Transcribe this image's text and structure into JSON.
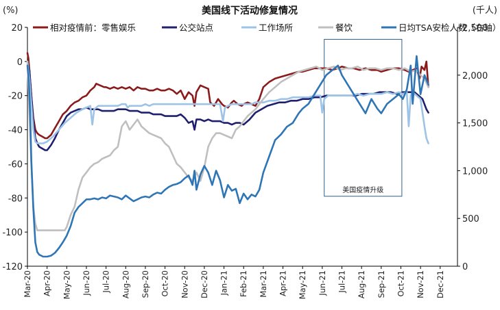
{
  "chart_data": {
    "type": "line",
    "title": "美国线下活动修复情况",
    "left_unit": "(%)",
    "right_unit": "(千人)",
    "ylim_left": [
      -120,
      20
    ],
    "yticks_left": [
      20,
      0,
      -20,
      -40,
      -60,
      -80,
      -100,
      -120
    ],
    "ylim_right": [
      0,
      2500
    ],
    "yticks_right": [
      "2,500",
      "2,000",
      "1,500",
      "1,000",
      "500",
      "0"
    ],
    "yticks_right_values": [
      2500,
      2000,
      1500,
      1000,
      500,
      0
    ],
    "x_ticks": [
      "Mar-20",
      "Apr-20",
      "May-20",
      "Jun-20",
      "Jul-20",
      "Aug-20",
      "Sep-20",
      "Oct-20",
      "Nov-20",
      "Dec-20",
      "Jan-21",
      "Feb-21",
      "Mar-21",
      "Apr-21",
      "May-21",
      "Jun-21",
      "Jul-21",
      "Aug-21",
      "Sep-21",
      "Oct-21",
      "Nov-21",
      "Dec-21"
    ],
    "annotation": {
      "label": "美国疫情升级",
      "x_start": 15.1,
      "x_end": 19.05,
      "y_top": 13,
      "y_bottom": -79
    },
    "series": [
      {
        "name": "相对疫情前：零售娱乐",
        "axis": "left",
        "color": "#8b1a1a",
        "x": [
          0,
          0.05,
          0.12,
          0.2,
          0.3,
          0.4,
          0.5,
          0.6,
          0.75,
          0.9,
          1.0,
          1.2,
          1.4,
          1.6,
          1.8,
          2.0,
          2.2,
          2.4,
          2.6,
          2.8,
          3.0,
          3.2,
          3.4,
          3.5,
          3.7,
          3.9,
          4.0,
          4.2,
          4.4,
          4.6,
          4.8,
          5.0,
          5.2,
          5.4,
          5.6,
          5.8,
          6.0,
          6.2,
          6.4,
          6.6,
          6.8,
          7.0,
          7.2,
          7.4,
          7.6,
          7.8,
          8.0,
          8.2,
          8.4,
          8.5,
          8.6,
          8.8,
          9.0,
          9.2,
          9.3,
          9.5,
          9.7,
          9.9,
          10.0,
          10.2,
          10.4,
          10.5,
          10.7,
          10.9,
          11.0,
          11.2,
          11.4,
          11.6,
          11.8,
          12.0,
          12.3,
          12.6,
          12.9,
          13.2,
          13.5,
          13.8,
          14.0,
          14.3,
          14.6,
          14.9,
          15.2,
          15.5,
          15.8,
          16.0,
          16.3,
          16.6,
          16.9,
          17.2,
          17.5,
          17.8,
          18.0,
          18.3,
          18.6,
          18.9,
          19.2,
          19.4,
          19.6,
          19.8,
          19.95,
          20.05,
          20.2,
          20.3,
          20.4
        ],
        "y": [
          5,
          2,
          -8,
          -20,
          -33,
          -40,
          -42,
          -43,
          -44,
          -45,
          -45,
          -43,
          -39,
          -35,
          -31,
          -29,
          -26,
          -24,
          -23,
          -21,
          -20,
          -17,
          -15,
          -13,
          -14,
          -15,
          -15,
          -16,
          -15,
          -16,
          -15,
          -16,
          -15,
          -17,
          -15,
          -16,
          -16,
          -17,
          -17,
          -16,
          -17,
          -17,
          -16,
          -17,
          -19,
          -17,
          -22,
          -18,
          -20,
          -26,
          -18,
          -14,
          -15,
          -16,
          -24,
          -26,
          -22,
          -25,
          -26,
          -27,
          -24,
          -23,
          -25,
          -26,
          -25,
          -24,
          -25,
          -26,
          -22,
          -15,
          -12,
          -10,
          -9,
          -8,
          -7,
          -6,
          -6,
          -5,
          -4,
          -4,
          -4,
          -5,
          -4,
          -3,
          -4,
          -4,
          -5,
          -4,
          -5,
          -5,
          -6,
          -5,
          -4,
          -4,
          -5,
          -6,
          -5,
          -4,
          -10,
          -3,
          -5,
          0,
          -15
        ]
      },
      {
        "name": "公交站点",
        "axis": "left",
        "color": "#1f1f6e",
        "x": [
          0,
          0.1,
          0.2,
          0.3,
          0.4,
          0.5,
          0.6,
          0.75,
          0.9,
          1.0,
          1.2,
          1.4,
          1.6,
          1.8,
          2.0,
          2.2,
          2.4,
          2.6,
          2.8,
          3.0,
          3.2,
          3.4,
          3.6,
          3.8,
          4.0,
          4.2,
          4.4,
          4.6,
          4.8,
          5.0,
          5.2,
          5.4,
          5.6,
          5.8,
          6.0,
          6.2,
          6.4,
          6.6,
          6.8,
          7.0,
          7.2,
          7.4,
          7.6,
          7.8,
          8.0,
          8.2,
          8.4,
          8.5,
          8.6,
          8.8,
          9.0,
          9.2,
          9.4,
          9.6,
          9.8,
          10.0,
          10.2,
          10.4,
          10.6,
          10.8,
          11.0,
          11.3,
          11.6,
          11.9,
          12.2,
          12.5,
          12.8,
          13.1,
          13.4,
          13.7,
          14.0,
          14.3,
          14.6,
          14.9,
          15.2,
          15.5,
          15.8,
          16.1,
          16.4,
          16.7,
          17.0,
          17.3,
          17.6,
          17.9,
          18.2,
          18.5,
          18.8,
          19.1,
          19.4,
          19.7,
          19.9,
          20.1,
          20.3,
          20.4
        ],
        "y": [
          0,
          -5,
          -20,
          -35,
          -45,
          -48,
          -50,
          -51,
          -52,
          -52,
          -49,
          -45,
          -40,
          -36,
          -32,
          -30,
          -29,
          -28,
          -28,
          -27,
          -28,
          -28,
          -28,
          -29,
          -29,
          -29,
          -29,
          -28,
          -28,
          -28,
          -29,
          -29,
          -29,
          -30,
          -30,
          -30,
          -31,
          -31,
          -31,
          -32,
          -32,
          -32,
          -32,
          -31,
          -33,
          -36,
          -35,
          -40,
          -34,
          -34,
          -35,
          -34,
          -35,
          -35,
          -35,
          -36,
          -36,
          -37,
          -36,
          -36,
          -37,
          -34,
          -30,
          -28,
          -26,
          -25,
          -24,
          -24,
          -23,
          -23,
          -22,
          -22,
          -21,
          -21,
          -20,
          -20,
          -20,
          -20,
          -20,
          -20,
          -19,
          -19,
          -19,
          -18,
          -18,
          -18,
          -19,
          -18,
          -18,
          -18,
          -20,
          -22,
          -28,
          -30
        ]
      },
      {
        "name": "工作场所",
        "axis": "left",
        "color": "#9dc3e6",
        "x": [
          0,
          0.1,
          0.2,
          0.3,
          0.4,
          0.5,
          0.6,
          0.8,
          1.0,
          1.3,
          1.6,
          1.9,
          2.2,
          2.5,
          2.8,
          3.0,
          3.2,
          3.3,
          3.4,
          3.6,
          3.8,
          4.0,
          4.2,
          4.4,
          4.6,
          4.8,
          5.0,
          5.1,
          5.2,
          5.4,
          5.6,
          5.8,
          6.0,
          6.2,
          6.4,
          6.6,
          6.8,
          7.0,
          7.2,
          7.4,
          7.6,
          7.8,
          8.0,
          8.3,
          8.5,
          8.7,
          9.0,
          9.2,
          9.4,
          9.6,
          9.8,
          9.95,
          10.05,
          10.2,
          10.4,
          10.6,
          10.8,
          11.0,
          11.2,
          11.4,
          11.6,
          11.8,
          12.0,
          12.3,
          12.6,
          12.9,
          13.2,
          13.5,
          13.8,
          14.0,
          14.3,
          14.6,
          14.9,
          15.0,
          15.1,
          15.3,
          15.6,
          15.9,
          16.2,
          16.5,
          16.8,
          17.1,
          17.4,
          17.7,
          18.0,
          18.3,
          18.6,
          18.9,
          19.1,
          19.3,
          19.4,
          19.5,
          19.6,
          19.8,
          20.0,
          20.1,
          20.2,
          20.3,
          20.4
        ],
        "y": [
          0,
          -10,
          -25,
          -40,
          -47,
          -48,
          -48,
          -48,
          -47,
          -44,
          -40,
          -36,
          -33,
          -30,
          -28,
          -27,
          -26,
          -37,
          -28,
          -26,
          -26,
          -26,
          -26,
          -26,
          -26,
          -25,
          -25,
          -27,
          -26,
          -26,
          -26,
          -26,
          -25,
          -26,
          -25,
          -25,
          -25,
          -25,
          -25,
          -25,
          -25,
          -25,
          -25,
          -25,
          -25,
          -25,
          -25,
          -25,
          -25,
          -25,
          -25,
          -35,
          -27,
          -26,
          -25,
          -25,
          -25,
          -25,
          -25,
          -25,
          -24,
          -24,
          -24,
          -23,
          -23,
          -22,
          -22,
          -21,
          -21,
          -21,
          -21,
          -20,
          -20,
          -30,
          -22,
          -20,
          -20,
          -20,
          -20,
          -20,
          -19,
          -20,
          -19,
          -19,
          -19,
          -18,
          -19,
          -18,
          -19,
          -18,
          -38,
          -20,
          -18,
          -20,
          -22,
          -30,
          -38,
          -45,
          -48
        ]
      },
      {
        "name": "餐饮",
        "axis": "left",
        "color": "#bfbfbf",
        "x": [
          0,
          0.1,
          0.2,
          0.3,
          0.4,
          0.5,
          0.7,
          0.9,
          1.0,
          1.3,
          1.6,
          1.9,
          2.0,
          2.2,
          2.4,
          2.6,
          2.8,
          3.0,
          3.2,
          3.4,
          3.6,
          3.8,
          4.0,
          4.2,
          4.4,
          4.6,
          4.8,
          5.0,
          5.2,
          5.4,
          5.6,
          5.8,
          6.0,
          6.2,
          6.4,
          6.6,
          6.8,
          7.0,
          7.2,
          7.4,
          7.6,
          7.8,
          8.0,
          8.2,
          8.4,
          8.6,
          8.8,
          9.0,
          9.2,
          9.4,
          9.6,
          9.8,
          10.0,
          10.2,
          10.4,
          10.6,
          10.8,
          11.0,
          11.2,
          11.4,
          11.6,
          11.8,
          12.0,
          12.3,
          12.6,
          12.9,
          13.2,
          13.5,
          13.8,
          14.1,
          14.4,
          14.7,
          15.0,
          15.3,
          15.6,
          15.9,
          16.2,
          16.5,
          16.8,
          17.1,
          17.4,
          17.7,
          18.0,
          18.3,
          18.6,
          18.9,
          19.2,
          19.5,
          19.8,
          20.0,
          20.2,
          20.4
        ],
        "y": [
          0,
          -30,
          -60,
          -85,
          -95,
          -99,
          -99,
          -99,
          -99,
          -99,
          -99,
          -99,
          -97,
          -90,
          -85,
          -75,
          -68,
          -65,
          -62,
          -60,
          -59,
          -57,
          -56,
          -55,
          -52,
          -50,
          -38,
          -35,
          -40,
          -37,
          -34,
          -38,
          -40,
          -42,
          -43,
          -44,
          -45,
          -48,
          -50,
          -55,
          -60,
          -62,
          -65,
          -68,
          -70,
          -65,
          -70,
          -62,
          -50,
          -45,
          -42,
          -42,
          -43,
          -44,
          -45,
          -40,
          -38,
          -35,
          -32,
          -30,
          -28,
          -25,
          -22,
          -18,
          -15,
          -12,
          -10,
          -8,
          -6,
          -5,
          -4,
          -3,
          -5,
          -4,
          -3,
          -5,
          -4,
          -4,
          -3,
          -5,
          -4,
          -4,
          -5,
          -4,
          -4,
          -5,
          -4,
          -6,
          -5,
          -8,
          -10,
          -15
        ]
      },
      {
        "name": "日均TSA安检人数（右轴）",
        "axis": "right",
        "color": "#2e75b6",
        "x": [
          0,
          0.05,
          0.1,
          0.15,
          0.2,
          0.3,
          0.4,
          0.5,
          0.6,
          0.8,
          1.0,
          1.2,
          1.4,
          1.6,
          1.8,
          2.0,
          2.2,
          2.4,
          2.6,
          2.8,
          3.0,
          3.2,
          3.4,
          3.6,
          3.8,
          4.0,
          4.2,
          4.4,
          4.6,
          4.8,
          5.0,
          5.2,
          5.4,
          5.6,
          5.8,
          6.0,
          6.2,
          6.4,
          6.6,
          6.8,
          7.0,
          7.2,
          7.4,
          7.6,
          7.8,
          8.0,
          8.2,
          8.4,
          8.5,
          8.6,
          8.8,
          9.0,
          9.2,
          9.4,
          9.6,
          9.8,
          10.0,
          10.2,
          10.4,
          10.6,
          10.8,
          11.0,
          11.2,
          11.4,
          11.6,
          11.8,
          12.0,
          12.3,
          12.6,
          12.9,
          13.2,
          13.5,
          13.8,
          14.0,
          14.3,
          14.6,
          14.9,
          15.2,
          15.5,
          15.8,
          16.0,
          16.3,
          16.6,
          16.9,
          17.2,
          17.5,
          17.8,
          18.0,
          18.3,
          18.6,
          18.9,
          19.1,
          19.3,
          19.5,
          19.6,
          19.8,
          20.0,
          20.2,
          20.4
        ],
        "y": [
          2100,
          2000,
          1800,
          1500,
          1100,
          600,
          250,
          150,
          120,
          100,
          100,
          110,
          140,
          190,
          250,
          320,
          420,
          560,
          620,
          660,
          700,
          700,
          710,
          700,
          720,
          710,
          740,
          730,
          720,
          700,
          740,
          710,
          680,
          700,
          720,
          730,
          720,
          750,
          770,
          760,
          800,
          830,
          850,
          860,
          880,
          920,
          950,
          850,
          1000,
          800,
          960,
          1050,
          980,
          850,
          1000,
          900,
          720,
          850,
          790,
          810,
          660,
          760,
          700,
          750,
          730,
          800,
          980,
          1150,
          1320,
          1380,
          1460,
          1500,
          1600,
          1650,
          1700,
          1800,
          1900,
          2000,
          2050,
          2100,
          2000,
          1900,
          1800,
          1700,
          1600,
          1750,
          1650,
          1600,
          1700,
          1750,
          1800,
          1750,
          1850,
          2100,
          1700,
          2200,
          1800,
          2000,
          1900
        ]
      }
    ]
  }
}
